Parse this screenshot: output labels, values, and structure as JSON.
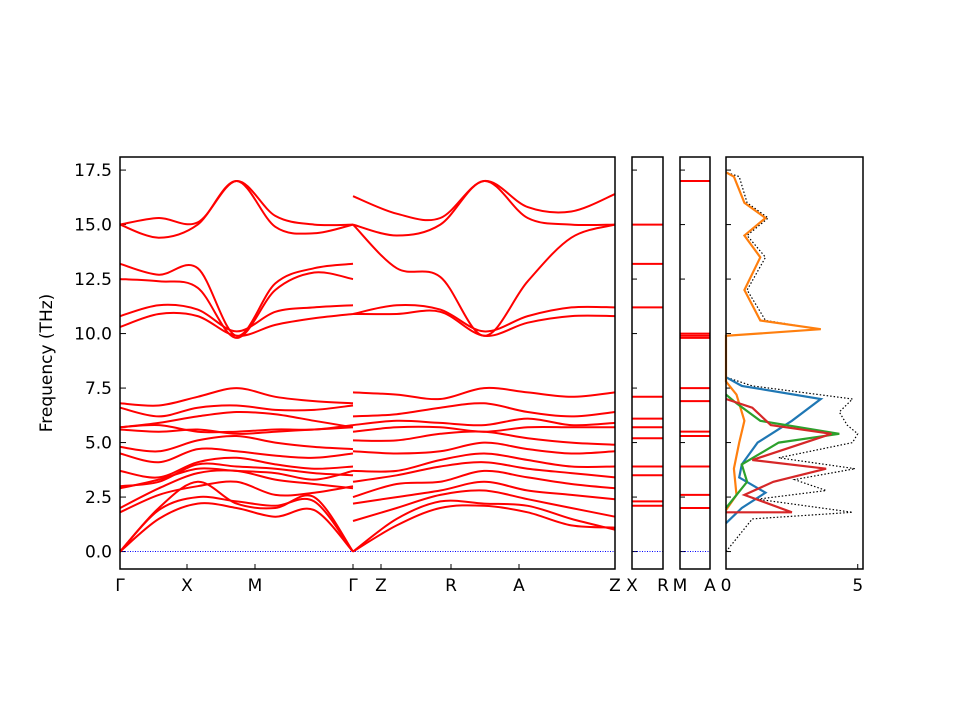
{
  "chart_data": {
    "type": "line",
    "title": "",
    "ylabel": "Frequency (THz)",
    "ylim": [
      -0.8,
      18.1
    ],
    "yticks": [
      0.0,
      2.5,
      5.0,
      7.5,
      10.0,
      12.5,
      15.0,
      17.5
    ],
    "ytick_labels": [
      "0.0",
      "2.5",
      "5.0",
      "7.5",
      "10.0",
      "12.5",
      "15.0",
      "17.5"
    ],
    "band_color": "#ff0000",
    "zero_line_color": "#0000ff",
    "bz_segments": [
      {
        "name": "Γ-X-M-Γ",
        "x_range": [
          0,
          1.95
        ],
        "labels": [
          {
            "pos": 0,
            "text": "Γ"
          },
          {
            "pos": 0.5,
            "text": "X"
          },
          {
            "pos": 1.0,
            "text": "M"
          },
          {
            "pos": 1.95,
            "text": "Γ"
          }
        ]
      },
      {
        "name": "Z-R-A-Z",
        "x_range": [
          0,
          1.95
        ],
        "labels": [
          {
            "pos": 0.1,
            "text": "Z"
          },
          {
            "pos": 0.6,
            "text": "R"
          },
          {
            "pos": 1.1,
            "text": "A"
          },
          {
            "pos": 1.95,
            "text": "Z"
          }
        ]
      },
      {
        "name": "X-R",
        "labels": [
          {
            "pos": 0,
            "text": "X"
          },
          {
            "pos": 1,
            "text": "R"
          }
        ]
      },
      {
        "name": "M-A",
        "labels": [
          {
            "pos": 0,
            "text": "M"
          },
          {
            "pos": 1,
            "text": "A"
          }
        ]
      }
    ],
    "bands_panel1": [
      [
        0,
        1.5,
        2.2,
        2.0,
        1.6,
        1.9,
        0
      ],
      [
        0,
        1.9,
        2.5,
        2.3,
        2.1,
        2.3,
        0
      ],
      [
        0,
        2.0,
        3.2,
        2.2,
        2.0,
        2.5,
        0
      ],
      [
        1.8,
        2.6,
        3.0,
        3.2,
        2.6,
        2.7,
        3.0
      ],
      [
        2.0,
        2.9,
        3.6,
        3.7,
        3.3,
        3.1,
        2.9
      ],
      [
        2.9,
        3.3,
        3.8,
        3.7,
        3.6,
        3.3,
        3.7
      ],
      [
        3.0,
        3.2,
        4.0,
        3.9,
        3.8,
        3.6,
        3.5
      ],
      [
        3.7,
        3.4,
        4.1,
        4.3,
        4.0,
        3.8,
        3.9
      ],
      [
        4.5,
        4.1,
        4.7,
        4.6,
        4.4,
        4.3,
        4.5
      ],
      [
        4.8,
        4.6,
        5.1,
        5.3,
        5.0,
        4.8,
        4.7
      ],
      [
        5.6,
        5.5,
        5.6,
        5.4,
        5.5,
        5.6,
        5.7
      ],
      [
        5.7,
        5.8,
        5.5,
        5.5,
        5.6,
        5.6,
        5.8
      ],
      [
        5.7,
        5.9,
        6.2,
        6.4,
        6.3,
        6.0,
        5.7
      ],
      [
        6.6,
        6.2,
        6.6,
        6.7,
        6.5,
        6.5,
        6.7
      ],
      [
        6.8,
        6.7,
        7.1,
        7.5,
        7.1,
        6.9,
        6.8
      ],
      [
        10.3,
        10.9,
        10.8,
        9.9,
        10.4,
        10.7,
        10.9
      ],
      [
        10.8,
        11.3,
        11.1,
        10.1,
        11.0,
        11.2,
        11.3
      ],
      [
        12.5,
        12.4,
        12.1,
        9.8,
        12.0,
        12.8,
        12.5
      ],
      [
        13.2,
        12.7,
        13.0,
        9.9,
        12.3,
        13.0,
        13.2
      ],
      [
        15.0,
        14.4,
        15.0,
        17.0,
        14.9,
        14.6,
        15.0
      ],
      [
        15.0,
        15.3,
        15.1,
        17.0,
        15.4,
        15.0,
        15.0
      ]
    ],
    "bands_panel2": [
      [
        0,
        1.2,
        2.0,
        2.1,
        1.8,
        1.2,
        1.1
      ],
      [
        0,
        1.5,
        2.3,
        2.2,
        2.1,
        1.5,
        1.0
      ],
      [
        1.4,
        2.0,
        2.6,
        2.8,
        2.4,
        2.0,
        1.6
      ],
      [
        2.2,
        2.5,
        2.8,
        3.2,
        2.8,
        2.6,
        2.4
      ],
      [
        2.5,
        3.1,
        3.2,
        3.7,
        3.4,
        3.1,
        2.9
      ],
      [
        3.2,
        3.5,
        3.9,
        4.1,
        3.8,
        3.6,
        3.4
      ],
      [
        3.7,
        3.7,
        4.2,
        4.5,
        4.2,
        3.9,
        3.9
      ],
      [
        4.6,
        4.5,
        4.6,
        5.0,
        4.7,
        4.5,
        4.6
      ],
      [
        5.1,
        5.1,
        5.4,
        5.5,
        5.2,
        5.0,
        4.9
      ],
      [
        5.5,
        5.7,
        5.7,
        5.5,
        5.7,
        5.7,
        5.7
      ],
      [
        5.8,
        6.0,
        5.9,
        5.8,
        6.1,
        5.8,
        5.9
      ],
      [
        6.2,
        6.3,
        6.6,
        6.8,
        6.4,
        6.2,
        6.4
      ],
      [
        7.3,
        7.2,
        7.0,
        7.5,
        7.3,
        7.1,
        7.3
      ],
      [
        10.9,
        10.9,
        11.0,
        9.9,
        10.5,
        10.8,
        10.8
      ],
      [
        10.9,
        11.3,
        11.1,
        10.1,
        10.8,
        11.2,
        11.2
      ],
      [
        15.0,
        13.0,
        12.6,
        9.9,
        12.4,
        14.4,
        15.0
      ],
      [
        15.0,
        14.5,
        15.0,
        17.0,
        15.3,
        15.0,
        15.0
      ],
      [
        16.3,
        15.5,
        15.3,
        17.0,
        15.8,
        15.6,
        16.4
      ]
    ],
    "bands_panel3": [
      2.1,
      2.3,
      3.5,
      3.9,
      5.2,
      5.7,
      6.1,
      7.1,
      11.2,
      13.2,
      15.0
    ],
    "bands_panel4": [
      2.0,
      2.6,
      3.9,
      5.3,
      5.5,
      6.9,
      7.5,
      9.8,
      9.9,
      10.0,
      17.0
    ],
    "dos": {
      "xlim": [
        0,
        5.2
      ],
      "xticks": [
        0,
        5
      ],
      "xtick_labels": [
        "0",
        "5"
      ],
      "series": [
        {
          "color": "#000000",
          "style": "dotted",
          "points": [
            [
              0,
              0.0
            ],
            [
              1.0,
              1.5
            ],
            [
              4.8,
              1.8
            ],
            [
              1.2,
              2.4
            ],
            [
              3.8,
              2.8
            ],
            [
              2.6,
              3.3
            ],
            [
              4.9,
              3.8
            ],
            [
              2.0,
              4.3
            ],
            [
              4.8,
              5.0
            ],
            [
              5.0,
              5.4
            ],
            [
              4.6,
              5.8
            ],
            [
              4.3,
              6.4
            ],
            [
              4.8,
              7.0
            ],
            [
              1.0,
              7.6
            ],
            [
              0,
              8.0
            ],
            [
              0,
              9.9
            ],
            [
              3.6,
              10.2
            ],
            [
              1.5,
              10.6
            ],
            [
              0.8,
              12.0
            ],
            [
              1.5,
              13.5
            ],
            [
              0.8,
              14.5
            ],
            [
              1.6,
              15.3
            ],
            [
              0.8,
              16.0
            ],
            [
              0.5,
              17.2
            ],
            [
              0,
              17.4
            ]
          ]
        },
        {
          "color": "#1f77b4",
          "style": "solid",
          "points": [
            [
              0,
              1.3
            ],
            [
              0.6,
              2.0
            ],
            [
              1.5,
              2.7
            ],
            [
              0.5,
              3.4
            ],
            [
              0.6,
              4.0
            ],
            [
              1.2,
              5.0
            ],
            [
              2.5,
              6.0
            ],
            [
              3.6,
              7.0
            ],
            [
              0.6,
              7.6
            ],
            [
              0,
              8.0
            ]
          ]
        },
        {
          "color": "#ff7f0e",
          "style": "solid",
          "points": [
            [
              0,
              1.9
            ],
            [
              0.4,
              2.6
            ],
            [
              0.3,
              3.8
            ],
            [
              0.5,
              5.0
            ],
            [
              0.7,
              6.0
            ],
            [
              0.4,
              7.2
            ],
            [
              0,
              7.8
            ],
            [
              0,
              9.9
            ],
            [
              3.6,
              10.2
            ],
            [
              1.3,
              10.6
            ],
            [
              0.7,
              12.0
            ],
            [
              1.3,
              13.5
            ],
            [
              0.7,
              14.5
            ],
            [
              1.5,
              15.3
            ],
            [
              0.7,
              16.0
            ],
            [
              0.3,
              17.2
            ],
            [
              0,
              17.4
            ]
          ]
        },
        {
          "color": "#2ca02c",
          "style": "solid",
          "points": [
            [
              0,
              2.0
            ],
            [
              0.8,
              3.2
            ],
            [
              0.6,
              4.0
            ],
            [
              2.0,
              5.0
            ],
            [
              4.3,
              5.4
            ],
            [
              1.3,
              6.0
            ],
            [
              0.4,
              6.8
            ],
            [
              0,
              7.2
            ]
          ]
        },
        {
          "color": "#d62728",
          "style": "solid",
          "points": [
            [
              0,
              1.8
            ],
            [
              2.5,
              1.8
            ],
            [
              0.7,
              2.6
            ],
            [
              1.8,
              3.2
            ],
            [
              3.8,
              3.8
            ],
            [
              1.0,
              4.2
            ],
            [
              4.0,
              5.4
            ],
            [
              1.7,
              5.8
            ],
            [
              1.0,
              6.6
            ],
            [
              0,
              7.0
            ]
          ]
        }
      ]
    }
  }
}
